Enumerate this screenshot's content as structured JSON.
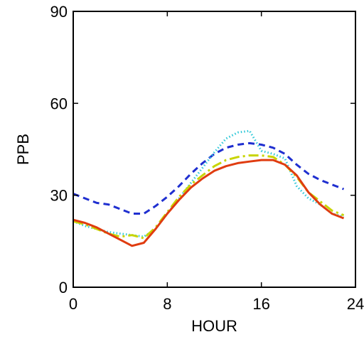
{
  "chart_data": {
    "type": "line",
    "xlabel": "HOUR",
    "ylabel": "PPB",
    "xlim": [
      0,
      24
    ],
    "ylim": [
      0,
      90
    ],
    "xticks": [
      0,
      8,
      16,
      24
    ],
    "yticks": [
      0,
      30,
      60,
      90
    ],
    "grid": false,
    "series": [
      {
        "color": "#1f2fd0",
        "style": "dashed",
        "x": [
          0,
          1,
          2,
          3,
          4,
          5,
          6,
          7,
          8,
          9,
          10,
          11,
          12,
          13,
          14,
          15,
          16,
          17,
          18,
          19,
          20,
          21,
          22,
          23
        ],
        "values": [
          30.5,
          29,
          27.5,
          27,
          25.5,
          24,
          24,
          26.5,
          29.5,
          33,
          37,
          40.5,
          43.5,
          45.5,
          46.5,
          47,
          46.5,
          45.5,
          43.5,
          40,
          37,
          35,
          33.5,
          32
        ]
      },
      {
        "color": "#2ec8d8",
        "style": "dotted",
        "x": [
          0,
          1,
          2,
          3,
          4,
          5,
          6,
          7,
          8,
          9,
          10,
          11,
          12,
          13,
          14,
          15,
          16,
          17,
          18,
          19,
          20,
          21,
          22,
          23
        ],
        "values": [
          21.5,
          20,
          19,
          18,
          17.5,
          17,
          16.5,
          19,
          24,
          29,
          34,
          39,
          44,
          48.5,
          50.5,
          51,
          44.5,
          43.5,
          42,
          33,
          29,
          27,
          24,
          23
        ]
      },
      {
        "color": "#c8d400",
        "style": "dashdot",
        "x": [
          0,
          1,
          2,
          3,
          4,
          5,
          6,
          7,
          8,
          9,
          10,
          11,
          12,
          13,
          14,
          15,
          16,
          17,
          18,
          19,
          20,
          21,
          22,
          23
        ],
        "values": [
          21.5,
          20.5,
          19,
          17.5,
          16.5,
          17,
          16,
          19.5,
          24.5,
          29.5,
          33.5,
          36.5,
          39.5,
          41.5,
          42.5,
          43,
          43,
          42.5,
          40,
          36,
          31,
          28,
          25,
          23.5
        ]
      },
      {
        "color": "#e03c10",
        "style": "solid",
        "x": [
          0,
          1,
          2,
          3,
          4,
          5,
          6,
          7,
          8,
          9,
          10,
          11,
          12,
          13,
          14,
          15,
          16,
          17,
          18,
          19,
          20,
          21,
          22,
          23
        ],
        "values": [
          22,
          21,
          19.5,
          17.5,
          15.5,
          13.5,
          14.5,
          19,
          24,
          28.5,
          32.5,
          35.5,
          38,
          39.5,
          40.5,
          41,
          41.5,
          41.5,
          40,
          36.5,
          31,
          27,
          24,
          22.5
        ]
      }
    ]
  }
}
